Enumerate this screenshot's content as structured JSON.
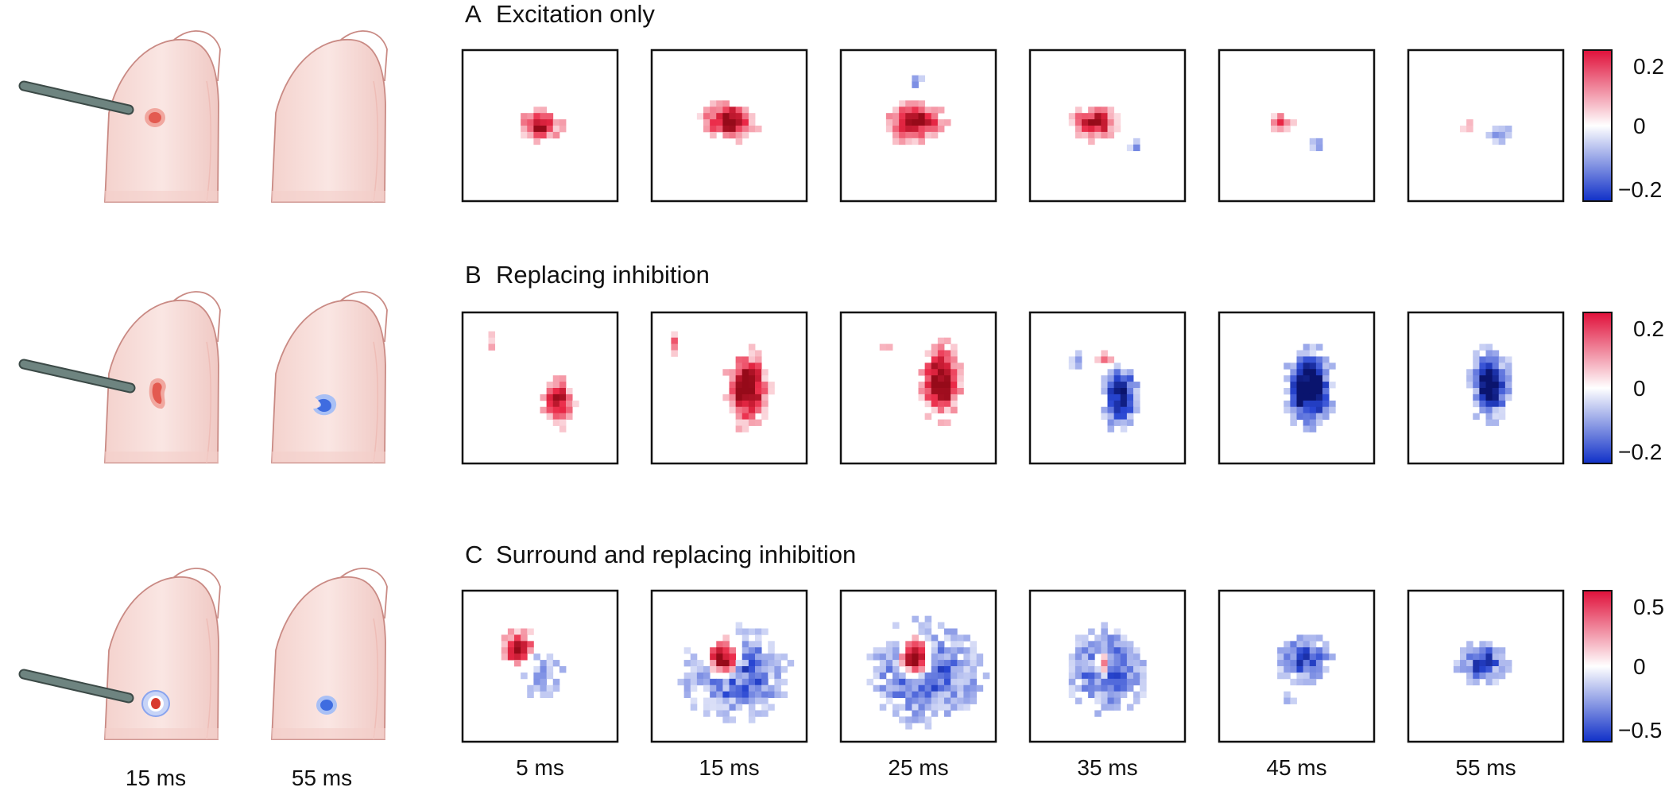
{
  "rows": [
    {
      "letter": "A",
      "title": "Excitation only",
      "colorbar": {
        "max_label": "0.2",
        "mid_label": "0",
        "min_label": "−0.2"
      }
    },
    {
      "letter": "B",
      "title": "Replacing inhibition",
      "colorbar": {
        "max_label": "0.2",
        "mid_label": "0",
        "min_label": "−0.2"
      }
    },
    {
      "letter": "C",
      "title": "Surround and replacing inhibition",
      "colorbar": {
        "max_label": "0.5",
        "mid_label": "0",
        "min_label": "−0.5"
      }
    }
  ],
  "time_labels": [
    "5 ms",
    "15 ms",
    "25 ms",
    "35 ms",
    "45 ms",
    "55 ms"
  ],
  "finger_time_labels": [
    "15 ms",
    "55 ms"
  ],
  "colors": {
    "excitation": "#e0103a",
    "inhibition": "#1030c8",
    "finger_skin": "#f7dcd8",
    "finger_outline": "#c98a84",
    "probe": "#6e8480"
  }
}
